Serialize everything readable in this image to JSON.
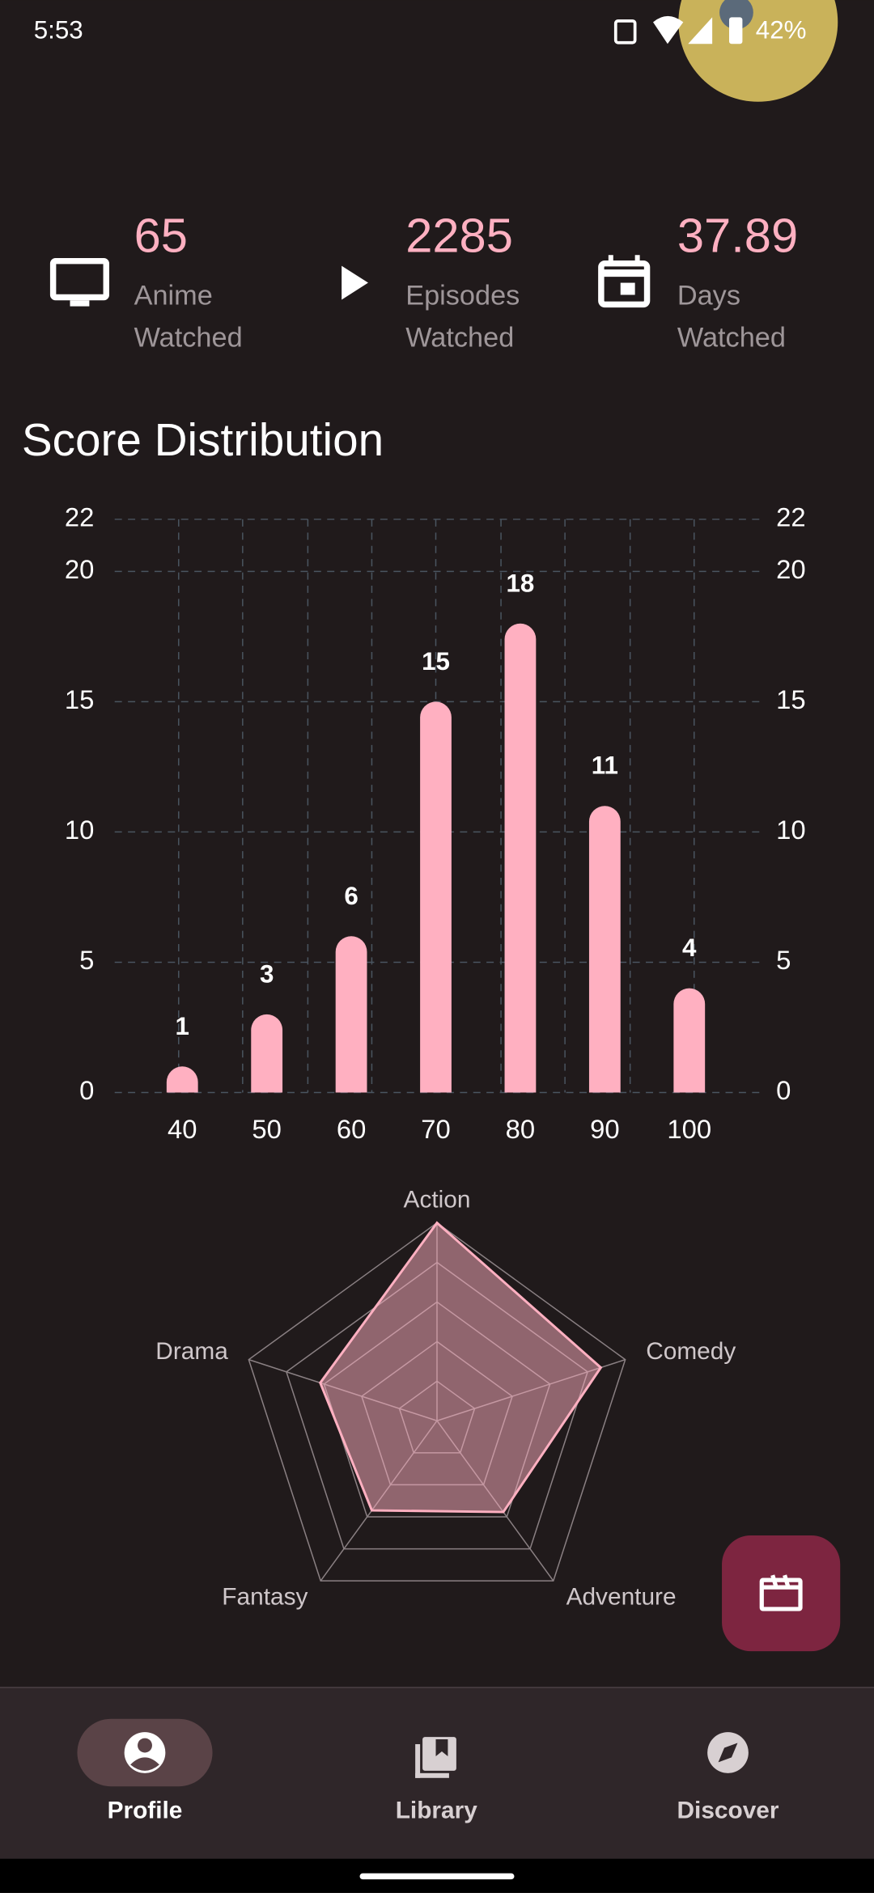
{
  "status_bar": {
    "time": "5:53",
    "battery": "42%"
  },
  "stats": [
    {
      "value": "65",
      "label": [
        "Anime",
        "Watched"
      ]
    },
    {
      "value": "2285",
      "label": [
        "Episodes",
        "Watched"
      ]
    },
    {
      "value": "37.89",
      "label": [
        "Days",
        "Watched"
      ]
    }
  ],
  "section_title": "Score Distribution",
  "chart_data": [
    {
      "type": "bar",
      "categories": [
        "40",
        "50",
        "60",
        "70",
        "80",
        "90",
        "100"
      ],
      "values": [
        1,
        3,
        6,
        15,
        18,
        11,
        4
      ],
      "color": "#ffb0c1",
      "ylim": [
        0,
        22
      ],
      "yticks": [
        0,
        5,
        10,
        15,
        20,
        22
      ],
      "grid": true,
      "right_axis": true
    },
    {
      "type": "radar",
      "categories": [
        "Action",
        "Comedy",
        "Adventure",
        "Fantasy",
        "Drama"
      ],
      "values": [
        1.0,
        0.87,
        0.57,
        0.56,
        0.62
      ],
      "color": "#ffb0c1",
      "rlim": [
        0,
        1
      ],
      "rticks": [
        0.2,
        0.4,
        0.6,
        0.8,
        1.0
      ]
    }
  ],
  "nav": [
    "Profile",
    "Library",
    "Discover"
  ]
}
